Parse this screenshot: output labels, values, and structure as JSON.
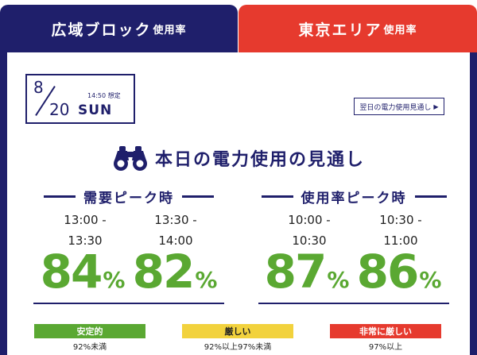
{
  "tabs": {
    "area": {
      "main": "広域ブロック",
      "sub": "使用率"
    },
    "tokyo": {
      "main": "東京エリア",
      "sub": "使用率"
    }
  },
  "date": {
    "month": "8",
    "day": "20",
    "weekday": "SUN",
    "estimate": "14:50 想定"
  },
  "outlook_link": {
    "label": "翌日の電力使用見通し",
    "arrow": "▶"
  },
  "headline": "本日の電力使用の見通し",
  "sections": {
    "demand": {
      "title": "需要ピーク時",
      "slots": [
        {
          "time_line1": "13:00 -",
          "time_line2": "13:30",
          "value": "84",
          "unit": "%"
        },
        {
          "time_line1": "13:30 -",
          "time_line2": "14:00",
          "value": "82",
          "unit": "%"
        }
      ]
    },
    "usage": {
      "title": "使用率ピーク時",
      "slots": [
        {
          "time_line1": "10:00 -",
          "time_line2": "10:30",
          "value": "87",
          "unit": "%"
        },
        {
          "time_line1": "10:30 -",
          "time_line2": "11:00",
          "value": "86",
          "unit": "%"
        }
      ]
    }
  },
  "legend": [
    {
      "label": "安定的",
      "caption": "92%未満",
      "color": "#5aa832"
    },
    {
      "label": "厳しい",
      "caption": "92%以上97%未満",
      "color": "#f2d23d"
    },
    {
      "label": "非常に厳しい",
      "caption": "97%以上",
      "color": "#e63a2e"
    }
  ],
  "colors": {
    "navy": "#1f1f6b",
    "red": "#e63a2e",
    "green": "#5aa832"
  }
}
